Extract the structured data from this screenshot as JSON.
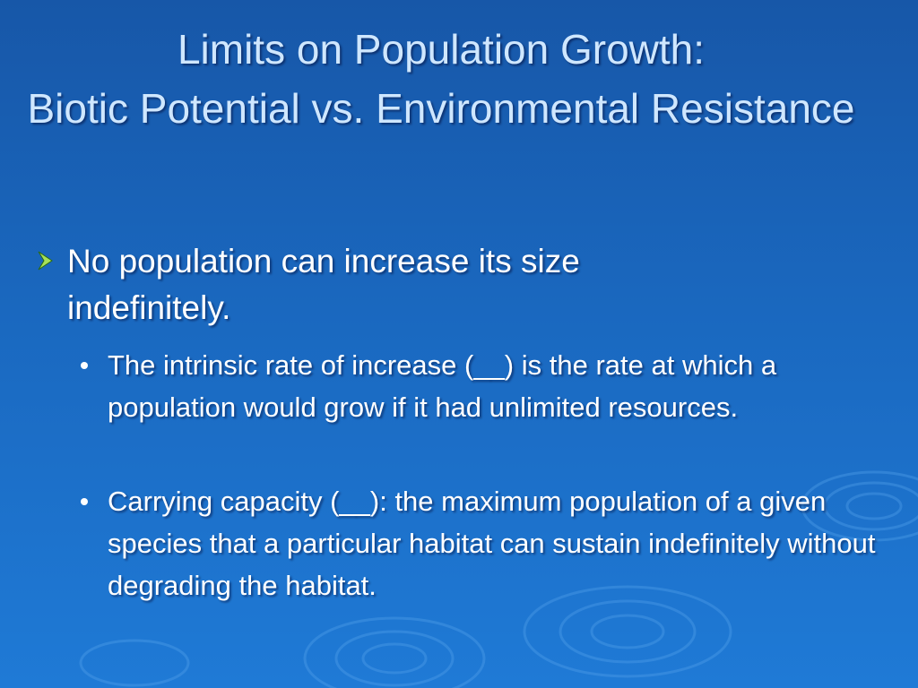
{
  "title": {
    "lines": [
      "Limits on Population Growth:",
      "Biotic Potential vs. Environmental Resistance"
    ]
  },
  "bullets": [
    {
      "text": "No population can increase its size indefinitely.",
      "sub_bullets": [
        "The intrinsic rate of increase (__) is the rate at which a population would grow if it had unlimited resources.",
        "Carrying capacity (__): the maximum population of a given species that a particular habitat can sustain indefinitely without degrading the habitat."
      ]
    }
  ]
}
